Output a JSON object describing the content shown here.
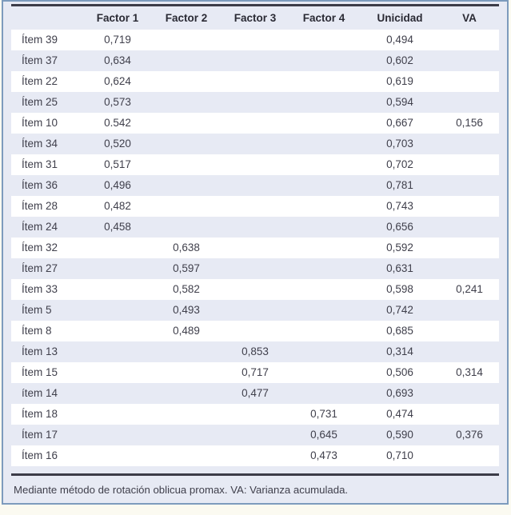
{
  "colors": {
    "frame_border": "#7d9bbd",
    "page_background": "#fbfaf1",
    "table_background": "#e7eaf4",
    "stripe_white": "#ffffff",
    "rule_dark": "#3c3c48",
    "body_text": "#3f3f4b",
    "header_text": "#2a2a34"
  },
  "table": {
    "columns": [
      "",
      "Factor 1",
      "Factor 2",
      "Factor 3",
      "Factor 4",
      "Unicidad",
      "VA"
    ],
    "rows": [
      {
        "item": "Ítem 39",
        "f1": "0,719",
        "f2": "",
        "f3": "",
        "f4": "",
        "unicidad": "0,494",
        "va": ""
      },
      {
        "item": "Ítem 37",
        "f1": "0,634",
        "f2": "",
        "f3": "",
        "f4": "",
        "unicidad": "0,602",
        "va": ""
      },
      {
        "item": "Ítem 22",
        "f1": "0,624",
        "f2": "",
        "f3": "",
        "f4": "",
        "unicidad": "0,619",
        "va": ""
      },
      {
        "item": "Ítem 25",
        "f1": "0,573",
        "f2": "",
        "f3": "",
        "f4": "",
        "unicidad": "0,594",
        "va": ""
      },
      {
        "item": "Ítem 10",
        "f1": "0.542",
        "f2": "",
        "f3": "",
        "f4": "",
        "unicidad": "0,667",
        "va": "0,156"
      },
      {
        "item": "Ítem 34",
        "f1": "0,520",
        "f2": "",
        "f3": "",
        "f4": "",
        "unicidad": "0,703",
        "va": ""
      },
      {
        "item": "Ítem 31",
        "f1": "0,517",
        "f2": "",
        "f3": "",
        "f4": "",
        "unicidad": "0,702",
        "va": ""
      },
      {
        "item": "Ítem 36",
        "f1": "0,496",
        "f2": "",
        "f3": "",
        "f4": "",
        "unicidad": "0,781",
        "va": ""
      },
      {
        "item": "Ítem 28",
        "f1": "0,482",
        "f2": "",
        "f3": "",
        "f4": "",
        "unicidad": "0,743",
        "va": ""
      },
      {
        "item": "Ítem 24",
        "f1": "0,458",
        "f2": "",
        "f3": "",
        "f4": "",
        "unicidad": "0,656",
        "va": ""
      },
      {
        "item": "Ítem 32",
        "f1": "",
        "f2": "0,638",
        "f3": "",
        "f4": "",
        "unicidad": "0,592",
        "va": ""
      },
      {
        "item": "Ítem 27",
        "f1": "",
        "f2": "0,597",
        "f3": "",
        "f4": "",
        "unicidad": "0,631",
        "va": ""
      },
      {
        "item": "Ítem 33",
        "f1": "",
        "f2": "0,582",
        "f3": "",
        "f4": "",
        "unicidad": "0,598",
        "va": "0,241"
      },
      {
        "item": "Ítem 5",
        "f1": "",
        "f2": "0,493",
        "f3": "",
        "f4": "",
        "unicidad": "0,742",
        "va": ""
      },
      {
        "item": "Ítem 8",
        "f1": "",
        "f2": "0,489",
        "f3": "",
        "f4": "",
        "unicidad": "0,685",
        "va": ""
      },
      {
        "item": "Ítem 13",
        "f1": "",
        "f2": "",
        "f3": "0,853",
        "f4": "",
        "unicidad": "0,314",
        "va": ""
      },
      {
        "item": "Ítem 15",
        "f1": "",
        "f2": "",
        "f3": "0,717",
        "f4": "",
        "unicidad": "0,506",
        "va": "0,314"
      },
      {
        "item": "ítem 14",
        "f1": "",
        "f2": "",
        "f3": "0,477",
        "f4": "",
        "unicidad": "0,693",
        "va": ""
      },
      {
        "item": "Ítem 18",
        "f1": "",
        "f2": "",
        "f3": "",
        "f4": "0,731",
        "unicidad": "0,474",
        "va": ""
      },
      {
        "item": "Ítem 17",
        "f1": "",
        "f2": "",
        "f3": "",
        "f4": "0,645",
        "unicidad": "0,590",
        "va": "0,376"
      },
      {
        "item": "Ítem 16",
        "f1": "",
        "f2": "",
        "f3": "",
        "f4": "0,473",
        "unicidad": "0,710",
        "va": ""
      }
    ],
    "footnote": "Mediante método de rotación oblicua promax. VA: Varianza acumulada."
  }
}
